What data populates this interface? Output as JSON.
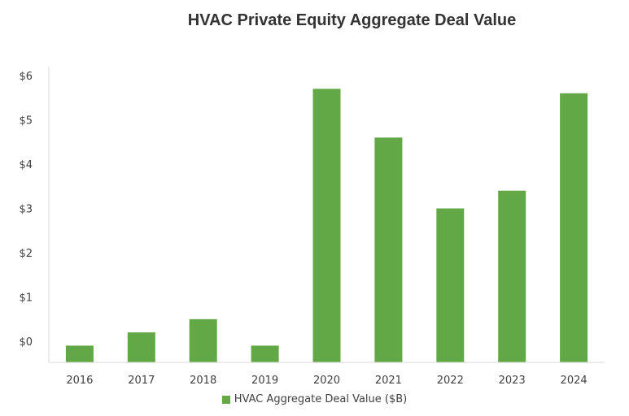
{
  "chart_data": {
    "type": "bar",
    "title": "HVAC Private Equity Aggregate Deal Value",
    "categories": [
      "2016",
      "2017",
      "2018",
      "2019",
      "2020",
      "2021",
      "2022",
      "2023",
      "2024"
    ],
    "series": [
      {
        "name": "HVAC Aggregate Deal Value ($B)",
        "values": [
          -0.1,
          0.2,
          0.5,
          -0.1,
          5.7,
          4.6,
          3.0,
          3.4,
          5.6
        ],
        "color": "#62a847"
      }
    ],
    "y_ticks": [
      "$0",
      "$1",
      "$2",
      "$3",
      "$4",
      "$5",
      "$6"
    ],
    "ylim": [
      -0.5,
      6.2
    ],
    "grid": false,
    "legend_position": "bottom"
  }
}
